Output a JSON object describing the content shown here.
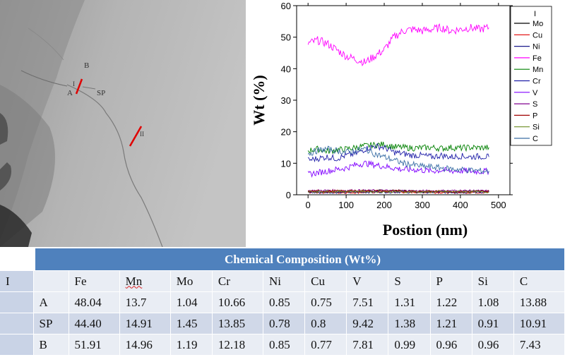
{
  "micrograph": {
    "labels": {
      "b": "B",
      "i": "I",
      "a": "A",
      "sp": "SP",
      "ii": "II"
    }
  },
  "chart_data": {
    "type": "line",
    "xlabel": "Postion (nm)",
    "ylabel": "Wt (%)",
    "xlim": [
      -30,
      530
    ],
    "ylim": [
      0,
      60
    ],
    "xticks": [
      0,
      100,
      200,
      300,
      400,
      500
    ],
    "yticks": [
      0,
      10,
      20,
      30,
      40,
      50,
      60
    ],
    "legend_title": "I",
    "legend_position": "right",
    "series": [
      {
        "name": "Mo",
        "color": "#000000",
        "x": [
          0,
          100,
          200,
          300,
          400,
          475
        ],
        "values": [
          1.2,
          1.0,
          1.3,
          1.1,
          1.0,
          1.1
        ]
      },
      {
        "name": "Cu",
        "color": "#e00000",
        "x": [
          0,
          100,
          200,
          300,
          400,
          475
        ],
        "values": [
          0.8,
          0.7,
          0.9,
          0.8,
          0.7,
          0.8
        ]
      },
      {
        "name": "Ni",
        "color": "#1a1a8c",
        "x": [
          0,
          100,
          200,
          300,
          400,
          475
        ],
        "values": [
          0.7,
          0.8,
          0.9,
          0.8,
          0.8,
          0.9
        ]
      },
      {
        "name": "Fe",
        "color": "#ff00ff",
        "x": [
          0,
          25,
          50,
          75,
          100,
          125,
          150,
          175,
          200,
          225,
          250,
          275,
          300,
          325,
          350,
          375,
          400,
          425,
          450,
          475
        ],
        "values": [
          48,
          49,
          48,
          46,
          44,
          43,
          42,
          44,
          46,
          50,
          52,
          52.5,
          52,
          52.5,
          53,
          52,
          52.5,
          53,
          52.5,
          53
        ]
      },
      {
        "name": "Mn",
        "color": "#008000",
        "x": [
          0,
          25,
          50,
          75,
          100,
          125,
          150,
          175,
          200,
          225,
          250,
          275,
          300,
          325,
          350,
          375,
          400,
          425,
          450,
          475
        ],
        "values": [
          14,
          14.5,
          13.8,
          14.2,
          14.5,
          15,
          15.5,
          15.8,
          16,
          15.2,
          15,
          14.8,
          14.9,
          15,
          14.7,
          15,
          14.8,
          15,
          14.9,
          15
        ]
      },
      {
        "name": "Cr",
        "color": "#1f1fa8",
        "x": [
          0,
          25,
          50,
          75,
          100,
          125,
          150,
          175,
          200,
          225,
          250,
          275,
          300,
          325,
          350,
          375,
          400,
          425,
          450,
          475
        ],
        "values": [
          11,
          11.5,
          12,
          11.5,
          12.5,
          13,
          14.5,
          15.5,
          15,
          13.5,
          13,
          12.5,
          12.5,
          12,
          12.5,
          12,
          12.3,
          12,
          12.2,
          12
        ]
      },
      {
        "name": "V",
        "color": "#8000ff",
        "x": [
          0,
          25,
          50,
          75,
          100,
          125,
          150,
          175,
          200,
          225,
          250,
          275,
          300,
          325,
          350,
          375,
          400,
          425,
          450,
          475
        ],
        "values": [
          6.5,
          7,
          7.5,
          8,
          8.5,
          9.5,
          10,
          9.5,
          9,
          8.5,
          8,
          8,
          7.8,
          7.5,
          7.8,
          7.5,
          7.6,
          7.5,
          7.4,
          7.5
        ]
      },
      {
        "name": "S",
        "color": "#80008f",
        "x": [
          0,
          100,
          200,
          300,
          400,
          475
        ],
        "values": [
          1.3,
          1.4,
          1.3,
          1.2,
          1.3,
          1.2
        ]
      },
      {
        "name": "P",
        "color": "#a00000",
        "x": [
          0,
          100,
          200,
          300,
          400,
          475
        ],
        "values": [
          1.1,
          1.2,
          1.2,
          1.1,
          1.0,
          1.1
        ]
      },
      {
        "name": "Si",
        "color": "#6b8e23",
        "x": [
          0,
          100,
          200,
          300,
          400,
          475
        ],
        "values": [
          1.0,
          1.1,
          1.0,
          0.9,
          1.0,
          0.9
        ]
      },
      {
        "name": "C",
        "color": "#3a6ea5",
        "x": [
          0,
          25,
          50,
          75,
          100,
          125,
          150,
          175,
          200,
          225,
          250,
          275,
          300,
          325,
          350,
          375,
          400,
          425,
          450,
          475
        ],
        "values": [
          13,
          14,
          14.5,
          14,
          13.5,
          14,
          14.5,
          13,
          12,
          11,
          10,
          9.5,
          9,
          8.8,
          8.5,
          8.2,
          8,
          7.8,
          7.6,
          7.5
        ]
      }
    ]
  },
  "table": {
    "title": "Chemical Composition (Wt%)",
    "group_label": "I",
    "columns": [
      "Fe",
      "Mn",
      "Mo",
      "Cr",
      "Ni",
      "Cu",
      "V",
      "S",
      "P",
      "Si",
      "C"
    ],
    "rows": [
      {
        "label": "A",
        "values": [
          "48.04",
          "13.7",
          "1.04",
          "10.66",
          "0.85",
          "0.75",
          "7.51",
          "1.31",
          "1.22",
          "1.08",
          "13.88"
        ]
      },
      {
        "label": "SP",
        "values": [
          "44.40",
          "14.91",
          "1.45",
          "13.85",
          "0.78",
          "0.8",
          "9.42",
          "1.38",
          "1.21",
          "0.91",
          "10.91"
        ]
      },
      {
        "label": "B",
        "values": [
          "51.91",
          "14.96",
          "1.19",
          "12.18",
          "0.85",
          "0.77",
          "7.81",
          "0.99",
          "0.96",
          "0.96",
          "7.43"
        ]
      }
    ]
  }
}
